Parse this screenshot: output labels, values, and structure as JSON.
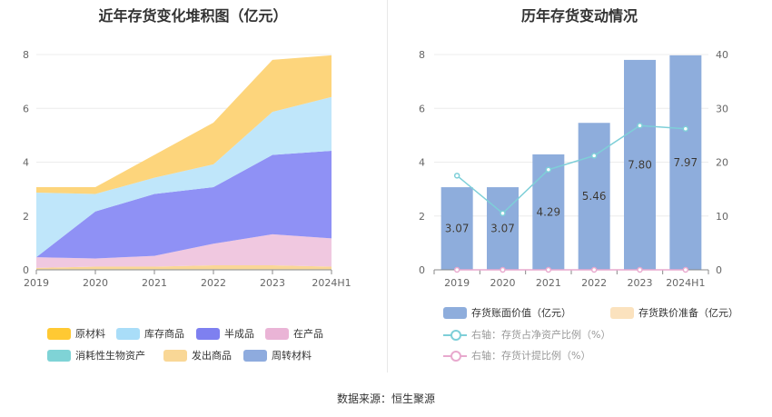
{
  "left_chart": {
    "title": "近年存货变化堆积图（亿元）",
    "chart_data": {
      "type": "area",
      "stacked": true,
      "categories": [
        "2019",
        "2020",
        "2021",
        "2022",
        "2023",
        "2024H1"
      ],
      "ylim": [
        0,
        8
      ],
      "yticks": [
        "0",
        "2",
        "4",
        "6",
        "8"
      ],
      "series": [
        {
          "name": "消耗性生物资产",
          "color": "#8fd9d9",
          "values": [
            0.02,
            0.02,
            0.02,
            0.02,
            0.02,
            0.02
          ]
        },
        {
          "name": "发出商品",
          "color": "#fad797",
          "values": [
            0.05,
            0.1,
            0.1,
            0.15,
            0.15,
            0.1
          ]
        },
        {
          "name": "在产品",
          "color": "#f0c8e0",
          "values": [
            0.4,
            0.3,
            0.4,
            0.8,
            1.15,
            1.05
          ]
        },
        {
          "name": "半成品",
          "color": "#8f91f5",
          "values": [
            0.0,
            1.75,
            2.3,
            2.1,
            2.95,
            3.25
          ]
        },
        {
          "name": "库存商品",
          "color": "#bfe6fa",
          "values": [
            2.4,
            0.65,
            0.6,
            0.85,
            1.6,
            2.0
          ]
        },
        {
          "name": "原材料",
          "color": "#fdd57c",
          "values": [
            0.2,
            0.25,
            0.85,
            1.55,
            1.93,
            1.55
          ]
        },
        {
          "name": "周转材料",
          "color": "#8eabde",
          "values": [
            0,
            0,
            0,
            0,
            0,
            0
          ]
        }
      ]
    },
    "legend": [
      {
        "name": "原材料",
        "color": "#ffc933"
      },
      {
        "name": "库存商品",
        "color": "#a9ddf8"
      },
      {
        "name": "半成品",
        "color": "#7e80f0"
      },
      {
        "name": "在产品",
        "color": "#eab4d6"
      },
      {
        "name": "消耗性生物资产",
        "color": "#7fd3d6"
      },
      {
        "name": "发出商品",
        "color": "#f9d796"
      },
      {
        "name": "周转材料",
        "color": "#8eabde"
      }
    ]
  },
  "right_chart": {
    "title": "历年存货变动情况",
    "chart_data": {
      "type": "bar",
      "categories": [
        "2019",
        "2020",
        "2021",
        "2022",
        "2023",
        "2024H1"
      ],
      "ylim": [
        0,
        8
      ],
      "y2lim": [
        0,
        40
      ],
      "yticks": [
        "0",
        "2",
        "4",
        "6",
        "8"
      ],
      "y2ticks": [
        "0",
        "10",
        "20",
        "30",
        "40"
      ],
      "series": [
        {
          "name": "存货账面价值（亿元）",
          "axis": "left",
          "color": "#8eaddc",
          "values": [
            3.07,
            3.07,
            4.29,
            5.46,
            7.8,
            7.97
          ],
          "labels": [
            "3.07",
            "3.07",
            "4.29",
            "5.46",
            "7.80",
            "7.97"
          ]
        },
        {
          "name": "存货跌价准备（亿元）",
          "axis": "left",
          "color": "#fbe2be",
          "values": [
            0,
            0,
            0,
            0,
            0,
            0
          ]
        },
        {
          "name": "右轴：存货占净资产比例（%）",
          "axis": "right",
          "color": "#7ecfd8",
          "values": [
            17.5,
            10.5,
            18.6,
            21.2,
            26.8,
            26.2
          ]
        },
        {
          "name": "右轴：存货计提比例（%）",
          "axis": "right",
          "color": "#e8a9ce",
          "values": [
            0,
            0,
            0,
            0,
            0,
            0
          ]
        }
      ]
    }
  },
  "source": "数据来源：恒生聚源"
}
